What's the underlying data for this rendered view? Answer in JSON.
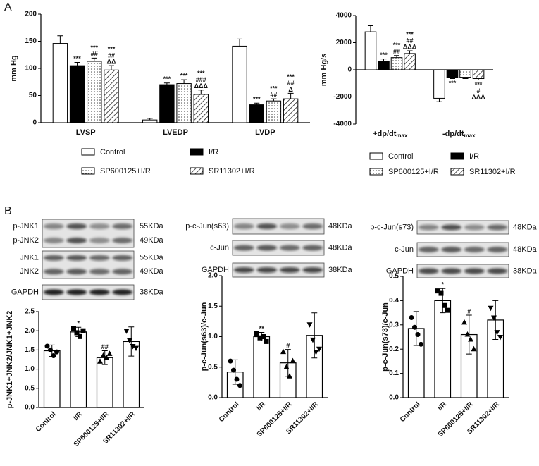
{
  "panel_labels": [
    "A",
    "B"
  ],
  "chart_data": [
    {
      "type": "bar",
      "ylabel": "mm Hg",
      "categories": [
        "LVSP",
        "LVEDP",
        "LVDP"
      ],
      "ylim": [
        0,
        200
      ],
      "yticks": [
        0,
        50,
        100,
        150,
        200
      ],
      "error_bars": "one-sided",
      "legend": "below",
      "series": [
        {
          "name": "Control",
          "color": "#ffffff",
          "pattern": "none",
          "values": [
            146,
            5,
            141
          ],
          "error": [
            14,
            3,
            13
          ],
          "annotations": [
            [],
            [],
            []
          ]
        },
        {
          "name": "I/R",
          "color": "#000000",
          "pattern": "none",
          "values": [
            105,
            70,
            33
          ],
          "error": [
            6,
            3,
            3
          ],
          "annotations": [
            [
              "***"
            ],
            [
              "***"
            ],
            [
              "***"
            ]
          ]
        },
        {
          "name": "SP600125+I/R",
          "color": "#ffffff",
          "pattern": "dots",
          "values": [
            113,
            72,
            40
          ],
          "error": [
            6,
            7,
            4
          ],
          "annotations": [
            [
              "***",
              "##"
            ],
            [
              "***"
            ],
            [
              "***",
              "##"
            ]
          ]
        },
        {
          "name": "SR11302+I/R",
          "color": "#ffffff",
          "pattern": "hatch",
          "values": [
            97,
            52,
            44
          ],
          "error": [
            8,
            8,
            10
          ],
          "annotations": [
            [
              "***",
              "##",
              "ΔΔ"
            ],
            [
              "***",
              "###",
              "ΔΔΔ"
            ],
            [
              "***",
              "##",
              "Δ"
            ]
          ]
        }
      ]
    },
    {
      "type": "bar",
      "ylabel": "mm Hg/s",
      "categories": [
        "+dp/dt",
        "-dp/dt"
      ],
      "category_subscripts": [
        "max",
        "max"
      ],
      "ylim": [
        -4000,
        4000
      ],
      "yticks": [
        -4000,
        -2000,
        0,
        2000,
        4000
      ],
      "error_bars": "one-sided",
      "legend": "below",
      "series": [
        {
          "name": "Control",
          "color": "#ffffff",
          "pattern": "none",
          "values": [
            2800,
            -2100
          ],
          "error": [
            450,
            250
          ],
          "annotations": [
            [],
            []
          ]
        },
        {
          "name": "I/R",
          "color": "#000000",
          "pattern": "none",
          "values": [
            650,
            -550
          ],
          "error": [
            150,
            100
          ],
          "annotations": [
            [
              "***"
            ],
            [
              "***"
            ]
          ]
        },
        {
          "name": "SP600125+I/R",
          "color": "#ffffff",
          "pattern": "dots",
          "values": [
            900,
            -550
          ],
          "error": [
            150,
            100
          ],
          "annotations": [
            [
              "***",
              "##"
            ],
            []
          ]
        },
        {
          "name": "SR11302+I/R",
          "color": "#ffffff",
          "pattern": "hatch",
          "values": [
            1200,
            -650
          ],
          "error": [
            200,
            100
          ],
          "annotations": [
            [
              "***",
              "##",
              "ΔΔΔ"
            ],
            [
              "***",
              "#",
              "ΔΔΔ"
            ]
          ]
        }
      ]
    },
    {
      "type": "bar",
      "ylabel": "p-JNK1+JNK2/JNK1+JNK2",
      "categories": [
        "Control",
        "I/R",
        "SP600125+I/R",
        "SR11302+I/R"
      ],
      "values": [
        1.48,
        1.97,
        1.3,
        1.72
      ],
      "error": [
        0.15,
        0.12,
        0.18,
        0.38
      ],
      "error_bars": "both",
      "color": "#ffffff",
      "points": [
        [
          1.6,
          1.5,
          1.35,
          1.45
        ],
        [
          2.05,
          1.95,
          1.85,
          2.0
        ],
        [
          1.2,
          1.35,
          1.3,
          1.4
        ],
        [
          2.0,
          1.75,
          1.6,
          1.55
        ]
      ],
      "markers": [
        "circle",
        "square",
        "triangle-up",
        "triangle-down"
      ],
      "annotations": [
        [],
        [
          "*"
        ],
        [
          "##"
        ],
        []
      ],
      "ylim": [
        0,
        2.5
      ],
      "yticks": [
        {
          "value": 0,
          "label": "0.0"
        },
        0.5,
        {
          "value": 1,
          "label": "1.0"
        },
        1.5,
        {
          "value": 2,
          "label": "2.0"
        },
        2.5
      ]
    },
    {
      "type": "bar",
      "ylabel": "p-c-Jun(s63)/c-Jun",
      "categories": [
        "Control",
        "I/R",
        "SP600125+I/R",
        "SR11302+I/R"
      ],
      "values": [
        0.42,
        1.0,
        0.57,
        1.02
      ],
      "error": [
        0.2,
        0.07,
        0.22,
        0.37
      ],
      "error_bars": "both",
      "color": "#ffffff",
      "points": [
        [
          0.6,
          0.45,
          0.3,
          0.2
        ],
        [
          1.05,
          0.98,
          1.0,
          0.92
        ],
        [
          0.75,
          0.5,
          0.35,
          0.6
        ],
        [
          1.2,
          0.95,
          0.75,
          0.8
        ]
      ],
      "markers": [
        "circle",
        "square",
        "triangle-up",
        "triangle-down"
      ],
      "annotations": [
        [],
        [
          "**"
        ],
        [
          "#"
        ],
        []
      ],
      "ylim": [
        0,
        2.0
      ],
      "yticks": [
        {
          "value": 0,
          "label": "0.0"
        },
        0.5,
        {
          "value": 1,
          "label": "1.0"
        },
        1.5,
        {
          "value": 2,
          "label": "2.0"
        }
      ]
    },
    {
      "type": "bar",
      "ylabel": "p-c-Jun(s73)/c-Jun",
      "categories": [
        "Control",
        "I/R",
        "SP600125+I/R",
        "SR11302+I/R"
      ],
      "values": [
        0.285,
        0.4,
        0.26,
        0.32
      ],
      "error": [
        0.07,
        0.05,
        0.08,
        0.08
      ],
      "error_bars": "both",
      "color": "#ffffff",
      "points": [
        [
          0.33,
          0.29,
          0.26,
          0.22
        ],
        [
          0.44,
          0.43,
          0.38,
          0.36
        ],
        [
          0.31,
          0.26,
          0.24,
          0.2
        ],
        [
          0.37,
          0.33,
          0.27,
          0.25
        ]
      ],
      "markers": [
        "circle",
        "square",
        "triangle-up",
        "triangle-down"
      ],
      "annotations": [
        [],
        [
          "*"
        ],
        [
          "#"
        ],
        []
      ],
      "ylim": [
        0,
        0.5
      ],
      "yticks": [
        {
          "value": 0,
          "label": "0.0"
        },
        0.1,
        0.2,
        0.3,
        0.4,
        0.5
      ]
    }
  ],
  "blots": [
    {
      "rows": [
        {
          "labels": [
            "p-JNK1",
            "p-JNK2"
          ],
          "sizes": [
            "55KDa",
            "49KDa"
          ]
        },
        {
          "labels": [
            "JNK1",
            "JNK2"
          ],
          "sizes": [
            "55KDa",
            "49KDa"
          ]
        },
        {
          "labels": [
            "GAPDH"
          ],
          "sizes": [
            "38KDa"
          ]
        }
      ]
    },
    {
      "rows": [
        {
          "labels": [
            "p-c-Jun(s63)"
          ],
          "sizes": [
            "48KDa"
          ]
        },
        {
          "labels": [
            "c-Jun"
          ],
          "sizes": [
            "48KDa"
          ]
        },
        {
          "labels": [
            "GAPDH"
          ],
          "sizes": [
            "38KDa"
          ]
        }
      ]
    },
    {
      "rows": [
        {
          "labels": [
            "p-c-Jun(s73)"
          ],
          "sizes": [
            "48KDa"
          ]
        },
        {
          "labels": [
            "c-Jun"
          ],
          "sizes": [
            "48KDa"
          ]
        },
        {
          "labels": [
            "GAPDH"
          ],
          "sizes": [
            "38KDa"
          ]
        }
      ]
    }
  ]
}
